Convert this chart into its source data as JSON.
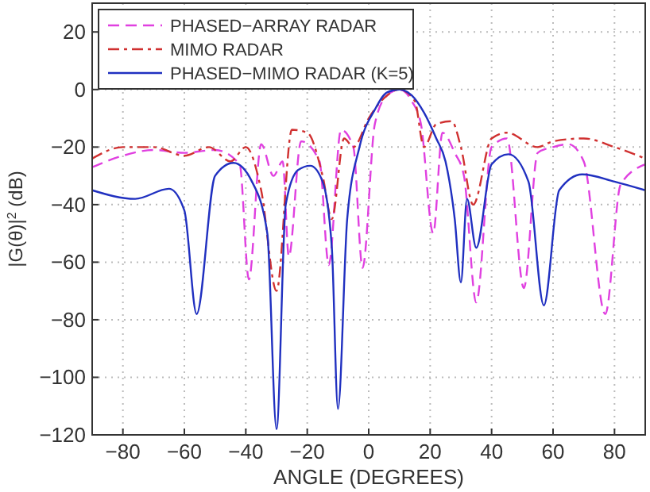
{
  "chart_data": {
    "type": "line",
    "xlabel": "ANGLE (DEGREES)",
    "ylabel": "|G(θ)|$^{2}$ (dB)",
    "xlim": [
      -90,
      90
    ],
    "ylim": [
      -120,
      30
    ],
    "xticks": [
      -80,
      -60,
      -40,
      -20,
      0,
      20,
      40,
      60,
      80
    ],
    "yticks": [
      -120,
      -100,
      -80,
      -60,
      -40,
      -20,
      0,
      20
    ],
    "grid": true,
    "legend": "top left",
    "series": [
      {
        "name": "PHASED−ARRAY RADAR",
        "color": "#e040e0",
        "line_style": "dashed",
        "x": [
          -90,
          -80,
          -70,
          -60,
          -50,
          -42,
          -39,
          -35,
          -31,
          -28,
          -26,
          -22,
          -16,
          -13,
          -9,
          -5,
          -2,
          2,
          6,
          10,
          14,
          17,
          21,
          24,
          28,
          31,
          35,
          40,
          45,
          50.5,
          55,
          60,
          65,
          70,
          77,
          82,
          90
        ],
        "values": [
          -27,
          -23,
          -21,
          -22,
          -21,
          -26,
          -66,
          -19,
          -30,
          -25,
          -58,
          -18,
          -25,
          -61,
          -14,
          -20,
          -62,
          -12,
          -2,
          0,
          -4,
          -12,
          -50,
          -15,
          -22,
          -30,
          -74,
          -20,
          -17,
          -69,
          -22,
          -20,
          -19,
          -25,
          -78,
          -33,
          -26
        ]
      },
      {
        "name": "MIMO RADAR",
        "color": "#d03030",
        "line_style": "dashdot",
        "x": [
          -90,
          -80,
          -70,
          -60,
          -52,
          -45,
          -40,
          -35,
          -30,
          -25,
          -20,
          -15,
          -12,
          -8,
          -5,
          0,
          5,
          10,
          15,
          18,
          22,
          27,
          30,
          34,
          40,
          45,
          55,
          60,
          70,
          80,
          90
        ],
        "values": [
          -24,
          -20,
          -20,
          -23,
          -20,
          -25,
          -20,
          -35,
          -70,
          -14,
          -15,
          -30,
          -45,
          -17,
          -20,
          -10,
          -3,
          0,
          -4,
          -20,
          -12,
          -11,
          -20,
          -40,
          -17,
          -15,
          -20,
          -18,
          -17,
          -20,
          -24
        ]
      },
      {
        "name": "PHASED−MIMO RADAR (K=5)",
        "color": "#2030c0",
        "line_style": "solid",
        "x": [
          -90,
          -76,
          -65,
          -60,
          -56,
          -50,
          -44,
          -38,
          -33,
          -30,
          -27,
          -23,
          -19,
          -15,
          -12,
          -10,
          -7,
          -3,
          2,
          6,
          10,
          14,
          18,
          22,
          25,
          28,
          30,
          32,
          35,
          40,
          45.5,
          52,
          57,
          62,
          69.5,
          80,
          90
        ],
        "values": [
          -35,
          -38,
          -34.5,
          -42,
          -78,
          -30,
          -25.5,
          -32,
          -50,
          -118,
          -40,
          -28,
          -26.5,
          -32,
          -55,
          -111,
          -45,
          -20,
          -7,
          -1,
          0,
          -2,
          -8,
          -17,
          -25,
          -45,
          -67,
          -38,
          -55,
          -26,
          -22.5,
          -32,
          -75,
          -35,
          -29.5,
          -32,
          -35
        ]
      }
    ]
  }
}
